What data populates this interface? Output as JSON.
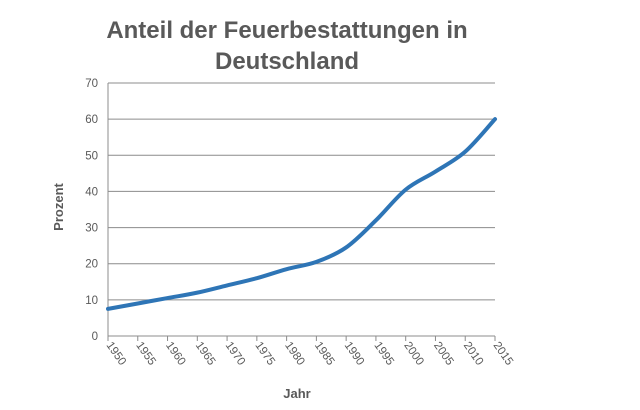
{
  "chart_data": {
    "type": "line",
    "title_lines": [
      "Anteil der Feuerbestattungen in",
      "Deutschland"
    ],
    "xlabel": "Jahr",
    "ylabel": "Prozent",
    "x": [
      1950,
      1955,
      1960,
      1965,
      1970,
      1975,
      1980,
      1985,
      1990,
      1995,
      2000,
      2005,
      2010,
      2015
    ],
    "x_tick_labels": [
      "1950",
      "1955",
      "1960",
      "1965",
      "1970",
      "1975",
      "1980",
      "1985",
      "1990",
      "1995",
      "2000",
      "2005",
      "2010",
      "2015"
    ],
    "y_ticks": [
      0,
      10,
      20,
      30,
      40,
      50,
      60,
      70
    ],
    "ylim": [
      0,
      70
    ],
    "grid": true,
    "legend": "none",
    "series": [
      {
        "name": "Anteil der Feuerbestattungen",
        "values": [
          7.5,
          9.0,
          10.5,
          12.0,
          14.0,
          16.0,
          18.5,
          20.5,
          24.5,
          32.0,
          40.5,
          45.5,
          51.0,
          60.0
        ]
      }
    ],
    "colors": {
      "line": "#2e75b6",
      "grid": "#8c8c8c",
      "text": "#595959"
    }
  }
}
